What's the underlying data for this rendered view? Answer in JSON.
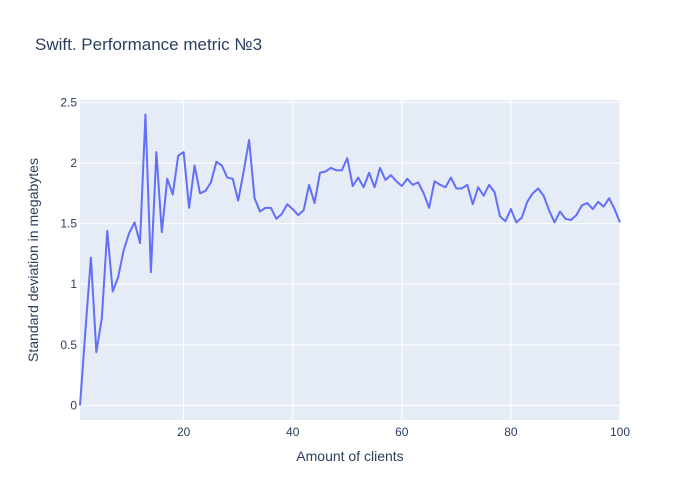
{
  "chart_data": {
    "type": "line",
    "title": "Swift. Performance metric №3",
    "xlabel": "Amount of clients",
    "ylabel": "Standard deviation in megabytes",
    "xlim": [
      1,
      100
    ],
    "ylim": [
      -0.12,
      2.52
    ],
    "x_ticks": [
      20,
      40,
      60,
      80,
      100
    ],
    "x_tick_labels": [
      "20",
      "40",
      "60",
      "80",
      "100"
    ],
    "y_ticks": [
      0,
      0.5,
      1,
      1.5,
      2,
      2.5
    ],
    "y_tick_labels": [
      "0",
      "0.5",
      "1",
      "1.5",
      "2",
      "2.5"
    ],
    "grid": true,
    "colors": {
      "plot_bg": "#e5ecf6",
      "grid": "#ffffff",
      "line": "#636efa",
      "text": "#2a3f5f"
    },
    "series": [
      {
        "x": [
          1,
          2,
          3,
          4,
          5,
          6,
          7,
          8,
          9,
          10,
          11,
          12,
          13,
          14,
          15,
          16,
          17,
          18,
          19,
          20,
          21,
          22,
          23,
          24,
          25,
          26,
          27,
          28,
          29,
          30,
          31,
          32,
          33,
          34,
          35,
          36,
          37,
          38,
          39,
          40,
          41,
          42,
          43,
          44,
          45,
          46,
          47,
          48,
          49,
          50,
          51,
          52,
          53,
          54,
          55,
          56,
          57,
          58,
          59,
          60,
          61,
          62,
          63,
          64,
          65,
          66,
          67,
          68,
          69,
          70,
          71,
          72,
          73,
          74,
          75,
          76,
          77,
          78,
          79,
          80,
          81,
          82,
          83,
          84,
          85,
          86,
          87,
          88,
          89,
          90,
          91,
          92,
          93,
          94,
          95,
          96,
          97,
          98,
          99,
          100
        ],
        "values": [
          0.0,
          0.62,
          1.22,
          0.44,
          0.72,
          1.44,
          0.94,
          1.06,
          1.28,
          1.42,
          1.51,
          1.34,
          2.4,
          1.1,
          2.09,
          1.43,
          1.87,
          1.74,
          2.06,
          2.09,
          1.63,
          1.98,
          1.75,
          1.77,
          1.84,
          2.01,
          1.98,
          1.88,
          1.87,
          1.69,
          1.93,
          2.19,
          1.71,
          1.6,
          1.63,
          1.63,
          1.54,
          1.58,
          1.66,
          1.62,
          1.57,
          1.61,
          1.82,
          1.67,
          1.92,
          1.93,
          1.96,
          1.94,
          1.94,
          2.04,
          1.81,
          1.88,
          1.8,
          1.92,
          1.8,
          1.96,
          1.86,
          1.9,
          1.85,
          1.81,
          1.87,
          1.82,
          1.84,
          1.75,
          1.63,
          1.85,
          1.82,
          1.8,
          1.88,
          1.79,
          1.79,
          1.82,
          1.66,
          1.8,
          1.73,
          1.82,
          1.76,
          1.56,
          1.52,
          1.62,
          1.51,
          1.55,
          1.68,
          1.75,
          1.79,
          1.73,
          1.61,
          1.51,
          1.6,
          1.54,
          1.53,
          1.57,
          1.65,
          1.67,
          1.62,
          1.68,
          1.64,
          1.71,
          1.62,
          1.51
        ]
      }
    ]
  }
}
